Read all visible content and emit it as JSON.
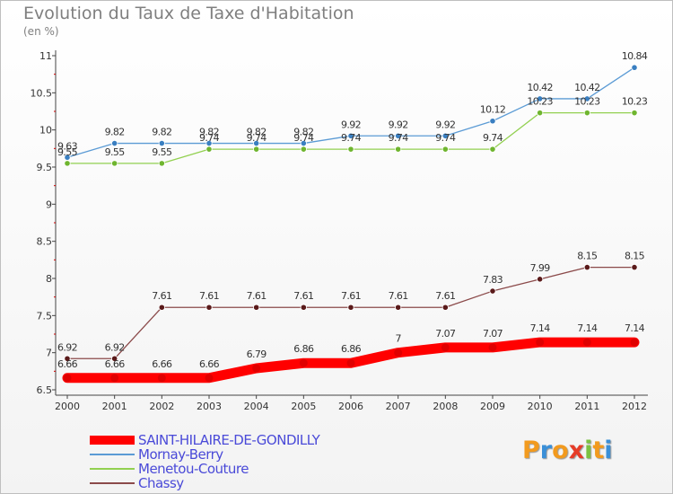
{
  "title": "Evolution du Taux de Taxe d'Habitation",
  "subtitle": "(en %)",
  "logo": {
    "letters": [
      "P",
      "r",
      "o",
      "x",
      "i",
      "t",
      "i"
    ],
    "colors": [
      "#f29a1e",
      "#3a8fd8",
      "#f29a1e",
      "#e63c28",
      "#7cc142",
      "#f29a1e",
      "#3a8fd8"
    ]
  },
  "chart_data": {
    "type": "line",
    "title": "Evolution du Taux de Taxe d'Habitation",
    "ylabel": "(en %)",
    "xlabel": "",
    "ylim": [
      6.5,
      11
    ],
    "y_ticks": [
      "6.5",
      "7",
      "7.5",
      "8",
      "8.5",
      "9",
      "9.5",
      "10",
      "10.5",
      "11"
    ],
    "y_tick_values": [
      6.5,
      7,
      7.5,
      8,
      8.5,
      9,
      9.5,
      10,
      10.5,
      11
    ],
    "categories": [
      "2000",
      "2001",
      "2002",
      "2003",
      "2004",
      "2005",
      "2006",
      "2007",
      "2008",
      "2009",
      "2010",
      "2011",
      "2012"
    ],
    "grid": false,
    "legend_position": "bottom-left",
    "series": [
      {
        "name": "Mornay-Berry",
        "color": "#5b9bd5",
        "marker_color": "#3a7fc1",
        "values": [
          9.63,
          9.82,
          9.82,
          9.82,
          9.82,
          9.82,
          9.92,
          9.92,
          9.92,
          10.12,
          10.42,
          10.42,
          10.84
        ],
        "labels": [
          "9.63",
          "9.82",
          "9.82",
          "9.82",
          "9.82",
          "9.82",
          "9.92",
          "9.92",
          "9.92",
          "10.12",
          "10.42",
          "10.42",
          "10.84"
        ]
      },
      {
        "name": "Menetou-Couture",
        "color": "#92d050",
        "marker_color": "#6fb52f",
        "values": [
          9.55,
          9.55,
          9.55,
          9.74,
          9.74,
          9.74,
          9.74,
          9.74,
          9.74,
          9.74,
          10.23,
          10.23,
          10.23
        ],
        "labels": [
          "9.55",
          "9.55",
          "9.55",
          "9.74",
          "9.74",
          "9.74",
          "9.74",
          "9.74",
          "9.74",
          "9.74",
          "10.23",
          "10.23",
          "10.23"
        ]
      },
      {
        "name": "Chassy",
        "color": "#8b4a4a",
        "marker_color": "#5a1a1a",
        "values": [
          6.92,
          6.92,
          7.61,
          7.61,
          7.61,
          7.61,
          7.61,
          7.61,
          7.61,
          7.83,
          7.99,
          8.15,
          8.15
        ],
        "labels": [
          "6.92",
          "6.92",
          "7.61",
          "7.61",
          "7.61",
          "7.61",
          "7.61",
          "7.61",
          "7.61",
          "7.83",
          "7.99",
          "8.15",
          "8.15"
        ]
      },
      {
        "name": "SAINT-HILAIRE-DE-GONDILLY",
        "color": "#ff0000",
        "marker_color": "#e00000",
        "thick": true,
        "values": [
          6.66,
          6.66,
          6.66,
          6.66,
          6.79,
          6.86,
          6.86,
          7,
          7.07,
          7.07,
          7.14,
          7.14,
          7.14
        ],
        "labels": [
          "6.66",
          "6.66",
          "6.66",
          "6.66",
          "6.79",
          "6.86",
          "6.86",
          "7",
          "7.07",
          "7.07",
          "7.14",
          "7.14",
          "7.14"
        ]
      }
    ],
    "legend": [
      {
        "label": "SAINT-HILAIRE-DE-GONDILLY",
        "color": "#ff0000",
        "thick": true
      },
      {
        "label": "Mornay-Berry",
        "color": "#5b9bd5"
      },
      {
        "label": "Menetou-Couture",
        "color": "#92d050"
      },
      {
        "label": "Chassy",
        "color": "#8b4a4a"
      }
    ]
  }
}
